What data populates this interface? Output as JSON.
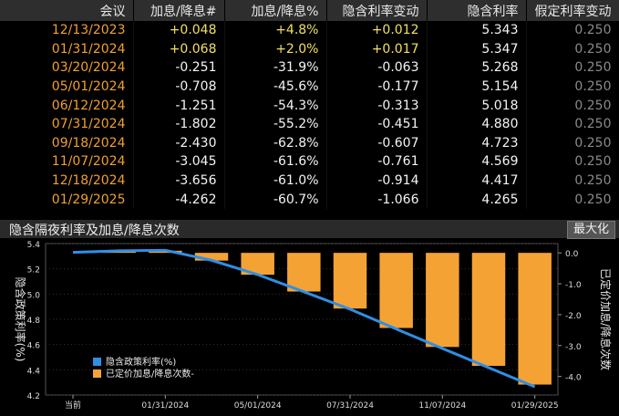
{
  "table": {
    "headers": [
      "会议",
      "加息/降息#",
      "加息/降息%",
      "隐含利率变动",
      "隐含利率",
      "假定利率变动"
    ],
    "rows": [
      {
        "date": "12/13/2023",
        "hikes": "+0.048",
        "pct": "+4.8%",
        "chg": "+0.012",
        "rate": "5.343",
        "assumed": "0.250"
      },
      {
        "date": "01/31/2024",
        "hikes": "+0.068",
        "pct": "+2.0%",
        "chg": "+0.017",
        "rate": "5.347",
        "assumed": "0.250"
      },
      {
        "date": "03/20/2024",
        "hikes": "-0.251",
        "pct": "-31.9%",
        "chg": "-0.063",
        "rate": "5.268",
        "assumed": "0.250"
      },
      {
        "date": "05/01/2024",
        "hikes": "-0.708",
        "pct": "-45.6%",
        "chg": "-0.177",
        "rate": "5.154",
        "assumed": "0.250"
      },
      {
        "date": "06/12/2024",
        "hikes": "-1.251",
        "pct": "-54.3%",
        "chg": "-0.313",
        "rate": "5.018",
        "assumed": "0.250"
      },
      {
        "date": "07/31/2024",
        "hikes": "-1.802",
        "pct": "-55.2%",
        "chg": "-0.451",
        "rate": "4.880",
        "assumed": "0.250"
      },
      {
        "date": "09/18/2024",
        "hikes": "-2.430",
        "pct": "-62.8%",
        "chg": "-0.607",
        "rate": "4.723",
        "assumed": "0.250"
      },
      {
        "date": "11/07/2024",
        "hikes": "-3.045",
        "pct": "-61.6%",
        "chg": "-0.761",
        "rate": "4.569",
        "assumed": "0.250"
      },
      {
        "date": "12/18/2024",
        "hikes": "-3.656",
        "pct": "-61.0%",
        "chg": "-0.914",
        "rate": "4.417",
        "assumed": "0.250"
      },
      {
        "date": "01/29/2025",
        "hikes": "-4.262",
        "pct": "-60.7%",
        "chg": "-1.066",
        "rate": "4.265",
        "assumed": "0.250"
      }
    ]
  },
  "chart_panel": {
    "title": "隐含隔夜利率及加息/降息次数",
    "maximize_label": "最大化"
  },
  "chart_data": {
    "type": "bar+line",
    "x_tick_labels": [
      "当前",
      "01/31/2024",
      "05/01/2024",
      "07/31/2024",
      "11/07/2024",
      "01/29/2025"
    ],
    "left_axis": {
      "label": "隐含政策利率(%)",
      "ticks": [
        "5.4",
        "5.2",
        "5.0",
        "4.8",
        "4.6",
        "4.4",
        "4.2"
      ],
      "ylim": [
        4.2,
        5.4
      ]
    },
    "right_axis": {
      "label": "已定价加息/降息次数",
      "ticks": [
        "0.0",
        "-1.0",
        "-2.0",
        "-3.0",
        "-4.0"
      ],
      "ylim": [
        -4.6,
        0.3
      ]
    },
    "line_series": {
      "name": "隐含政策利率(%)",
      "color": "#2f8fe6",
      "x": [
        "当前",
        "12/13/2023",
        "01/31/2024",
        "03/20/2024",
        "05/01/2024",
        "06/12/2024",
        "07/31/2024",
        "09/18/2024",
        "11/07/2024",
        "12/18/2024",
        "01/29/2025"
      ],
      "values": [
        5.33,
        5.343,
        5.347,
        5.268,
        5.154,
        5.018,
        4.88,
        4.723,
        4.569,
        4.417,
        4.265
      ]
    },
    "bar_series": {
      "name": "已定价加息/降息次数-",
      "color": "#f5a235",
      "x": [
        "12/13/2023",
        "01/31/2024",
        "03/20/2024",
        "05/01/2024",
        "06/12/2024",
        "07/31/2024",
        "09/18/2024",
        "11/07/2024",
        "12/18/2024",
        "01/29/2025"
      ],
      "values": [
        0.048,
        0.068,
        -0.251,
        -0.708,
        -1.251,
        -1.802,
        -2.43,
        -3.045,
        -3.656,
        -4.262
      ]
    },
    "legend": [
      "隐含政策利率(%)",
      "已定价加息/降息次数-"
    ],
    "legend_position": "bottom-left"
  },
  "colors": {
    "accent": "#f0a030",
    "bar": "#f5a235",
    "line": "#2f8fe6",
    "header_bg": "#2e2e2e"
  }
}
